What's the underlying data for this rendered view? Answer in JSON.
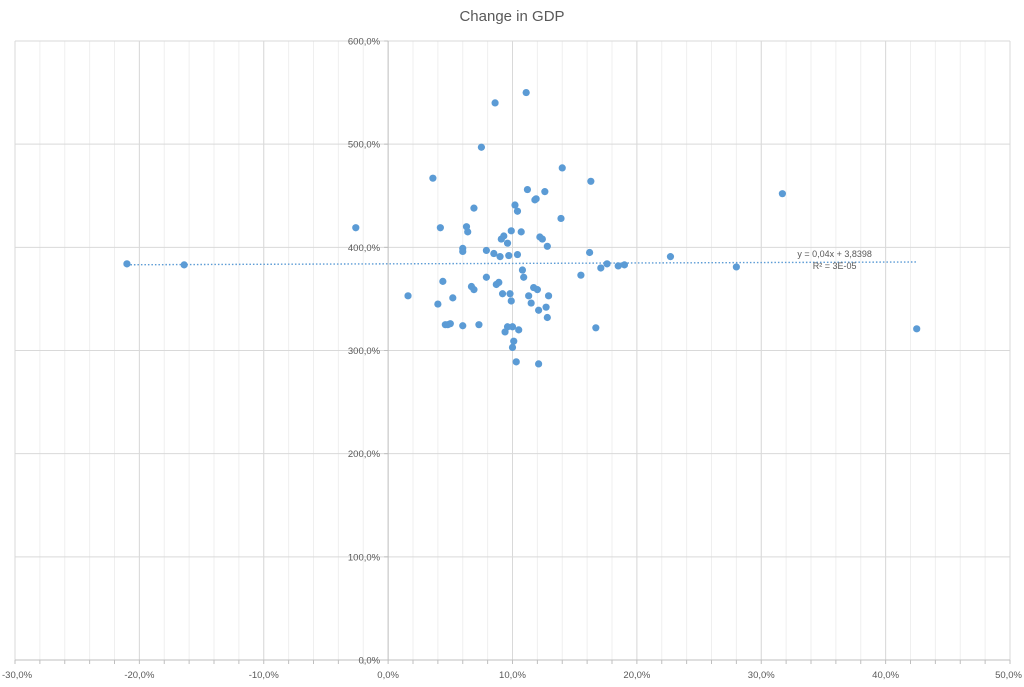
{
  "chart_data": {
    "type": "scatter",
    "title": "Change in GDP",
    "xlabel": "",
    "ylabel": "",
    "xlim": [
      -30,
      50
    ],
    "ylim": [
      0,
      600
    ],
    "x_major_ticks": [
      -30,
      -20,
      -10,
      0,
      10,
      20,
      30,
      40,
      50
    ],
    "x_tick_labels": [
      "-30,0%",
      "-20,0%",
      "-10,0%",
      "0,0%",
      "10,0%",
      "20,0%",
      "30,0%",
      "40,0%",
      "50,0%"
    ],
    "y_major_ticks": [
      0,
      100,
      200,
      300,
      400,
      500,
      600
    ],
    "y_tick_labels": [
      "0,0%",
      "100,0%",
      "200,0%",
      "300,0%",
      "400,0%",
      "500,0%",
      "600,0%"
    ],
    "grid": true,
    "legend": "none",
    "colors": {
      "points": "#5b9bd5",
      "trendline": "#5b9bd5",
      "grid": "#d9d9d9",
      "axis": "#bfbfbf"
    },
    "trendline": {
      "equation": "y = 0,04x + 3,8398",
      "r_squared": "R² = 3E-05",
      "x_range": [
        -21,
        42.5
      ],
      "y_at_start": 383.1,
      "y_at_end": 385.8
    },
    "points": [
      {
        "x": -21.0,
        "y": 384
      },
      {
        "x": -16.4,
        "y": 383
      },
      {
        "x": -2.6,
        "y": 419
      },
      {
        "x": 1.6,
        "y": 353
      },
      {
        "x": 3.6,
        "y": 467
      },
      {
        "x": 4.0,
        "y": 345
      },
      {
        "x": 4.2,
        "y": 419
      },
      {
        "x": 4.4,
        "y": 367
      },
      {
        "x": 4.6,
        "y": 325
      },
      {
        "x": 4.8,
        "y": 325
      },
      {
        "x": 5.0,
        "y": 326
      },
      {
        "x": 5.2,
        "y": 351
      },
      {
        "x": 6.0,
        "y": 399
      },
      {
        "x": 6.0,
        "y": 396
      },
      {
        "x": 6.0,
        "y": 324
      },
      {
        "x": 6.3,
        "y": 420
      },
      {
        "x": 6.4,
        "y": 415
      },
      {
        "x": 6.7,
        "y": 362
      },
      {
        "x": 6.9,
        "y": 359
      },
      {
        "x": 6.9,
        "y": 438
      },
      {
        "x": 7.3,
        "y": 325
      },
      {
        "x": 7.5,
        "y": 497
      },
      {
        "x": 7.9,
        "y": 397
      },
      {
        "x": 7.9,
        "y": 371
      },
      {
        "x": 8.5,
        "y": 394
      },
      {
        "x": 8.6,
        "y": 540
      },
      {
        "x": 8.7,
        "y": 364
      },
      {
        "x": 8.9,
        "y": 366
      },
      {
        "x": 9.0,
        "y": 391
      },
      {
        "x": 9.1,
        "y": 408
      },
      {
        "x": 9.2,
        "y": 355
      },
      {
        "x": 9.3,
        "y": 411
      },
      {
        "x": 9.4,
        "y": 318
      },
      {
        "x": 9.6,
        "y": 323
      },
      {
        "x": 9.6,
        "y": 404
      },
      {
        "x": 9.7,
        "y": 392
      },
      {
        "x": 9.8,
        "y": 355
      },
      {
        "x": 9.9,
        "y": 348
      },
      {
        "x": 9.9,
        "y": 416
      },
      {
        "x": 10.0,
        "y": 323
      },
      {
        "x": 10.0,
        "y": 303
      },
      {
        "x": 10.1,
        "y": 309
      },
      {
        "x": 10.2,
        "y": 441
      },
      {
        "x": 10.3,
        "y": 289
      },
      {
        "x": 10.4,
        "y": 393
      },
      {
        "x": 10.4,
        "y": 435
      },
      {
        "x": 10.5,
        "y": 320
      },
      {
        "x": 10.7,
        "y": 415
      },
      {
        "x": 10.8,
        "y": 378
      },
      {
        "x": 10.9,
        "y": 371
      },
      {
        "x": 11.1,
        "y": 550
      },
      {
        "x": 11.2,
        "y": 456
      },
      {
        "x": 11.3,
        "y": 353
      },
      {
        "x": 11.5,
        "y": 346
      },
      {
        "x": 11.7,
        "y": 361
      },
      {
        "x": 11.8,
        "y": 446
      },
      {
        "x": 11.9,
        "y": 447
      },
      {
        "x": 12.0,
        "y": 359
      },
      {
        "x": 12.1,
        "y": 287
      },
      {
        "x": 12.1,
        "y": 339
      },
      {
        "x": 12.2,
        "y": 410
      },
      {
        "x": 12.4,
        "y": 408
      },
      {
        "x": 12.6,
        "y": 454
      },
      {
        "x": 12.7,
        "y": 342
      },
      {
        "x": 12.8,
        "y": 401
      },
      {
        "x": 12.8,
        "y": 332
      },
      {
        "x": 12.9,
        "y": 353
      },
      {
        "x": 13.9,
        "y": 428
      },
      {
        "x": 14.0,
        "y": 477
      },
      {
        "x": 15.5,
        "y": 373
      },
      {
        "x": 16.2,
        "y": 395
      },
      {
        "x": 16.3,
        "y": 464
      },
      {
        "x": 16.7,
        "y": 322
      },
      {
        "x": 17.1,
        "y": 380
      },
      {
        "x": 17.6,
        "y": 384
      },
      {
        "x": 18.5,
        "y": 382
      },
      {
        "x": 19.0,
        "y": 383
      },
      {
        "x": 22.7,
        "y": 391
      },
      {
        "x": 28.0,
        "y": 381
      },
      {
        "x": 31.7,
        "y": 452
      },
      {
        "x": 42.5,
        "y": 321
      }
    ]
  }
}
